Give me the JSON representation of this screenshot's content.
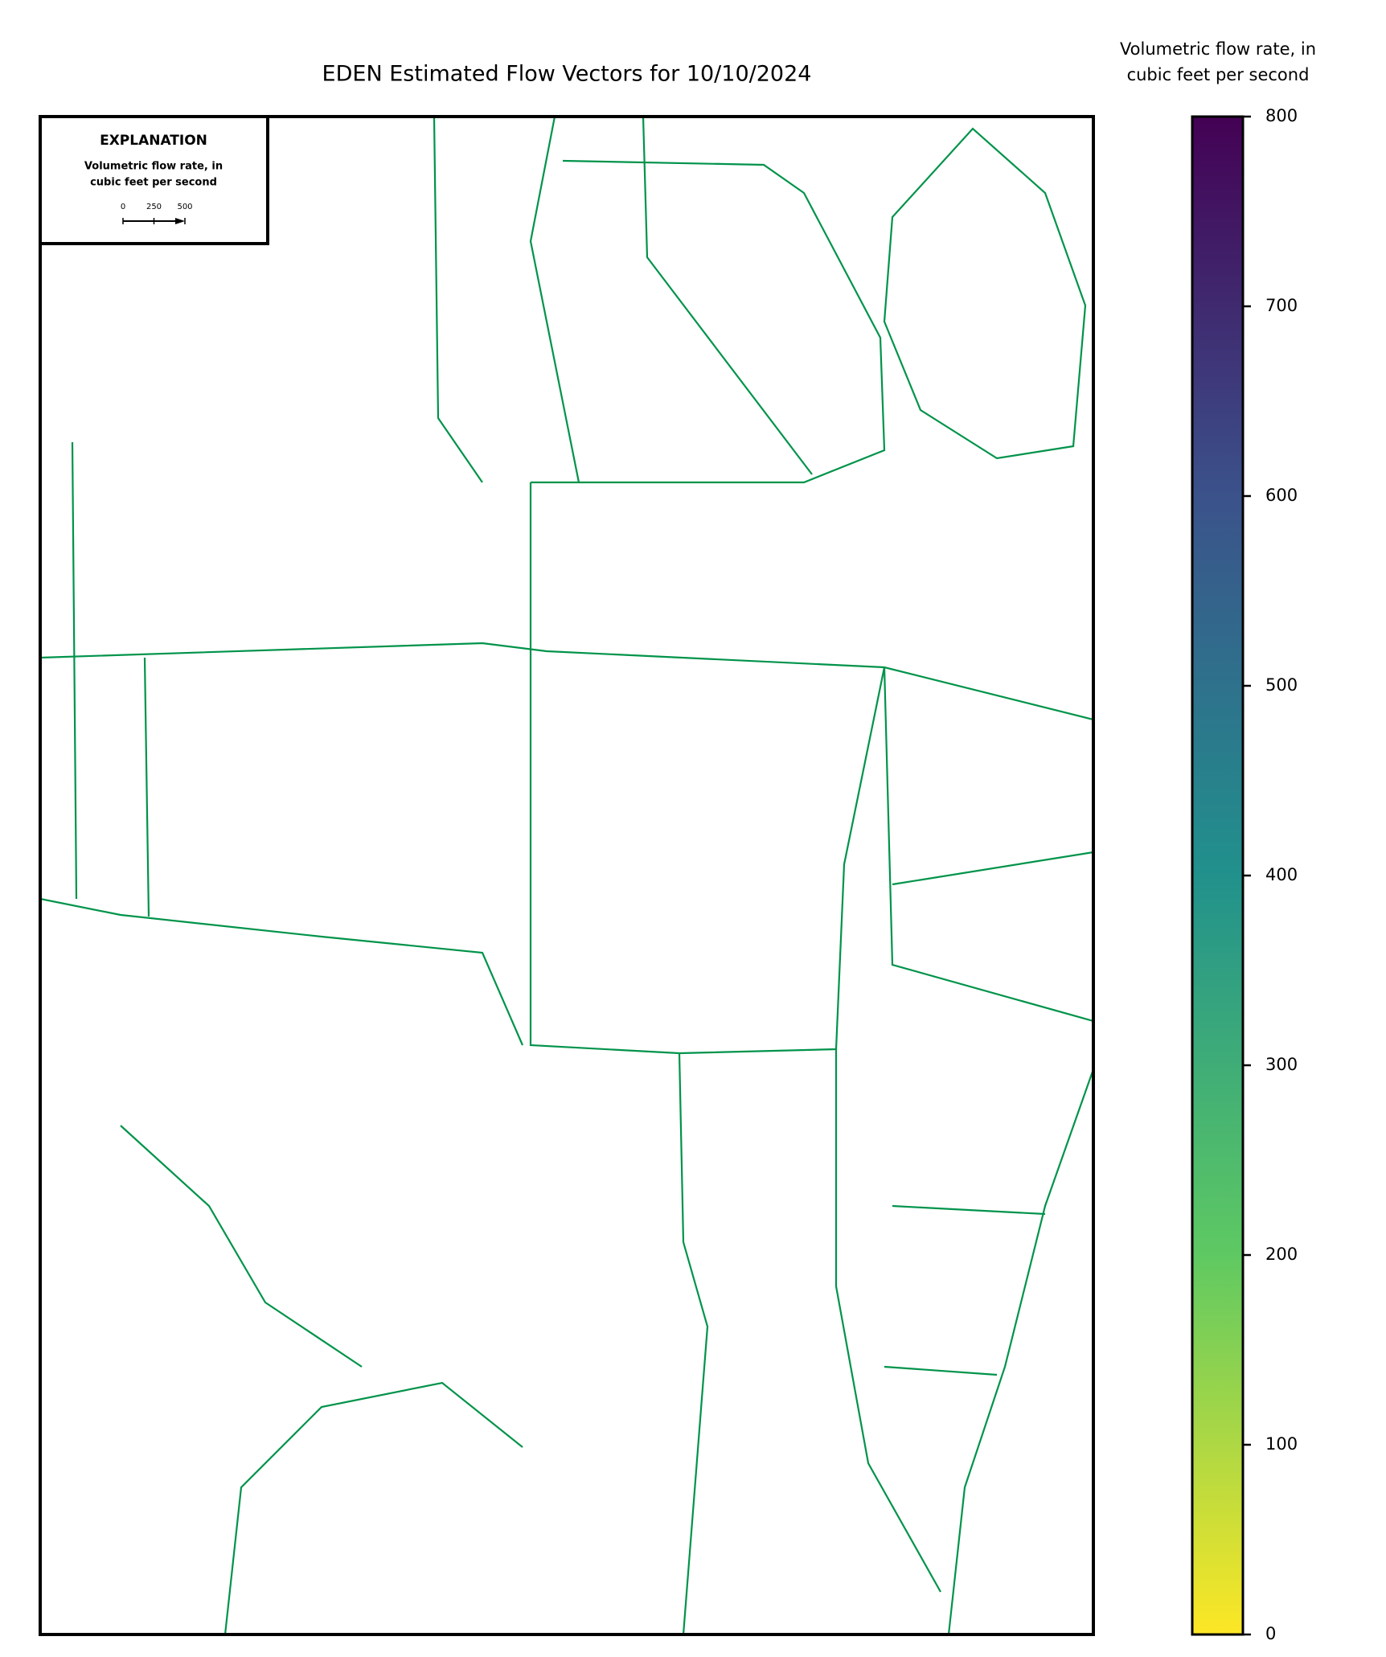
{
  "chart_data": {
    "type": "quiver",
    "title": "EDEN Estimated Flow Vectors for 10/10/2024",
    "colorbar": {
      "label": [
        "Volumetric flow rate, in",
        "cubic feet per second"
      ],
      "colormap": "viridis_r",
      "clim": [
        0,
        800
      ],
      "ticks": [
        0,
        100,
        200,
        300,
        400,
        500,
        600,
        700,
        800
      ]
    },
    "key": {
      "title": "EXPLANATION",
      "label": [
        "Volumetric flow rate, in",
        "cubic feet per second"
      ],
      "scale_ticks": [
        0,
        250,
        500
      ],
      "arrow_value": 500
    }
  }
}
